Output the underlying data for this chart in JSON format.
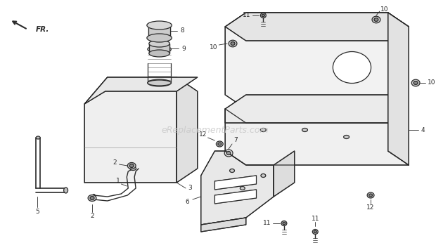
{
  "background_color": "#ffffff",
  "watermark_text": "eReplacementParts.com",
  "watermark_color": "#c8c8c8",
  "watermark_fontsize": 9,
  "line_color": "#2a2a2a",
  "label_fontsize": 6.5,
  "figsize": [
    6.2,
    3.46
  ],
  "dpi": 100,
  "xlim": [
    0,
    620
  ],
  "ylim": [
    0,
    346
  ]
}
